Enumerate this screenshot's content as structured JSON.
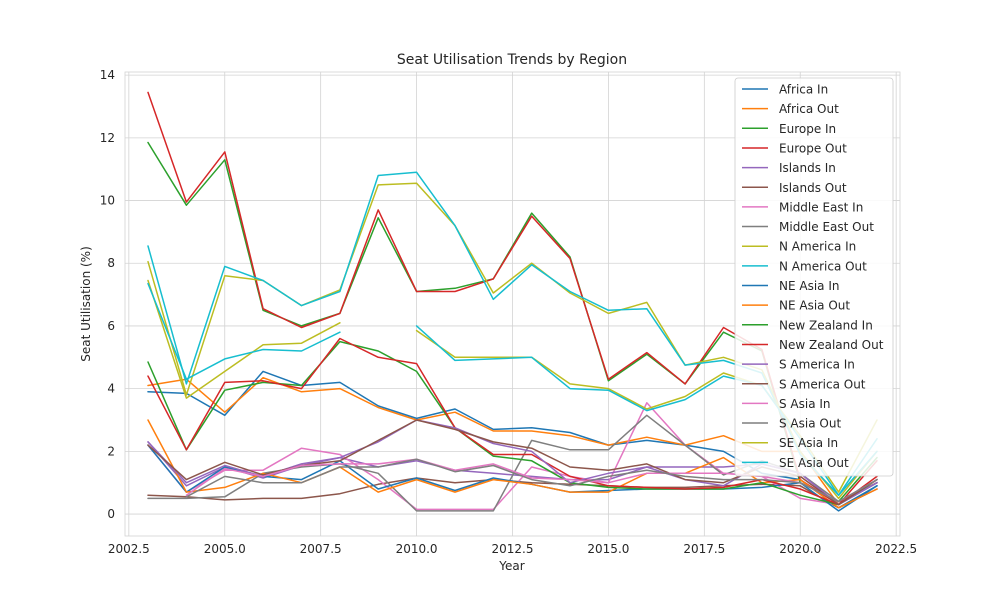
{
  "chart_data": {
    "type": "line",
    "title": "Seat Utilisation Trends by Region",
    "xlabel": "Year",
    "ylabel": "Seat Utilisation (%)",
    "xlim": [
      2002.4,
      2022.6
    ],
    "ylim": [
      -0.7,
      14.1
    ],
    "xticks": [
      2002.5,
      2005.0,
      2007.5,
      2010.0,
      2012.5,
      2015.0,
      2017.5,
      2020.0,
      2022.5
    ],
    "xtick_labels": [
      "2002.5",
      "2005.0",
      "2007.5",
      "2010.0",
      "2012.5",
      "2015.0",
      "2017.5",
      "2020.0",
      "2022.5"
    ],
    "yticks": [
      0,
      2,
      4,
      6,
      8,
      10,
      12,
      14
    ],
    "ytick_labels": [
      "0",
      "2",
      "4",
      "6",
      "8",
      "10",
      "12",
      "14"
    ],
    "grid": true,
    "legend_position": "top-right",
    "x": [
      2003,
      2004,
      2005,
      2006,
      2007,
      2008,
      2009,
      2010,
      2011,
      2012,
      2013,
      2014,
      2015,
      2016,
      2017,
      2018,
      2019,
      2020,
      2021,
      2022
    ],
    "series": [
      {
        "name": "Africa In",
        "color": "#1f77b4",
        "values": [
          3.9,
          3.85,
          3.15,
          4.55,
          4.1,
          4.2,
          3.45,
          3.05,
          3.35,
          2.7,
          2.75,
          2.6,
          2.2,
          2.35,
          2.2,
          2.0,
          1.3,
          1.1,
          0.2,
          0.9
        ]
      },
      {
        "name": "Africa Out",
        "color": "#ff7f0e",
        "values": [
          4.1,
          4.3,
          3.25,
          4.35,
          3.9,
          4.0,
          3.4,
          3.0,
          3.25,
          2.65,
          2.65,
          2.5,
          2.2,
          2.45,
          2.2,
          2.5,
          2.0,
          2.0,
          0.3,
          1.0
        ]
      },
      {
        "name": "Europe In",
        "color": "#2ca02c",
        "values": [
          11.85,
          9.85,
          11.3,
          6.5,
          6.0,
          6.4,
          9.45,
          7.1,
          7.2,
          7.5,
          9.6,
          8.2,
          4.25,
          5.1,
          4.15,
          5.8,
          5.2,
          1.0,
          0.4,
          1.8
        ]
      },
      {
        "name": "Europe Out",
        "color": "#d62728",
        "values": [
          13.45,
          9.95,
          11.55,
          6.55,
          5.95,
          6.4,
          9.7,
          7.1,
          7.1,
          7.5,
          9.5,
          8.15,
          4.3,
          5.15,
          4.15,
          5.95,
          5.25,
          1.1,
          0.3,
          1.7
        ]
      },
      {
        "name": "Islands In",
        "color": "#9467bd",
        "values": [
          2.3,
          0.9,
          1.5,
          1.15,
          1.55,
          1.8,
          1.5,
          1.7,
          1.4,
          1.3,
          1.2,
          1.1,
          1.1,
          1.5,
          1.5,
          1.5,
          1.6,
          1.3,
          0.3,
          1.0
        ]
      },
      {
        "name": "Islands Out",
        "color": "#8c564b",
        "values": [
          0.6,
          0.55,
          0.45,
          0.5,
          0.5,
          0.65,
          0.95,
          1.15,
          1.0,
          1.1,
          1.0,
          0.95,
          0.9,
          0.85,
          0.85,
          0.9,
          0.95,
          0.9,
          0.2,
          0.8
        ]
      },
      {
        "name": "Middle East In",
        "color": "#e377c2",
        "values": [
          2.2,
          0.7,
          1.4,
          1.4,
          2.1,
          1.9,
          1.1,
          0.15,
          0.15,
          0.15,
          1.5,
          1.2,
          1.0,
          3.55,
          2.2,
          1.3,
          1.2,
          0.5,
          0.3,
          1.1
        ]
      },
      {
        "name": "Middle East Out",
        "color": "#7f7f7f",
        "values": [
          0.5,
          0.5,
          0.55,
          1.3,
          1.5,
          1.6,
          1.3,
          0.1,
          0.1,
          0.1,
          2.35,
          2.05,
          2.05,
          3.15,
          2.2,
          1.25,
          1.7,
          1.3,
          0.4,
          1.0
        ]
      },
      {
        "name": "N America In",
        "color": "#bcbd22",
        "values": [
          8.05,
          3.8,
          7.6,
          7.45,
          6.65,
          7.15,
          10.5,
          10.55,
          9.2,
          7.05,
          8.0,
          7.05,
          6.4,
          6.75,
          4.75,
          5.0,
          4.6,
          2.0,
          0.5,
          2.0
        ]
      },
      {
        "name": "N America Out",
        "color": "#17becf",
        "values": [
          8.55,
          4.15,
          7.9,
          7.45,
          6.65,
          7.1,
          10.8,
          10.9,
          9.2,
          6.85,
          7.95,
          7.1,
          6.5,
          6.55,
          4.75,
          4.9,
          4.5,
          1.9,
          0.6,
          2.0
        ]
      },
      {
        "name": "NE Asia In",
        "color": "#1f77b4",
        "values": [
          2.2,
          0.7,
          1.5,
          1.2,
          1.1,
          1.7,
          0.8,
          1.15,
          0.75,
          1.15,
          0.95,
          0.7,
          0.75,
          0.8,
          0.8,
          0.8,
          0.85,
          1.0,
          0.1,
          0.9
        ]
      },
      {
        "name": "NE Asia Out",
        "color": "#ff7f0e",
        "values": [
          3.0,
          0.7,
          0.85,
          1.3,
          1.0,
          1.5,
          0.7,
          1.1,
          0.7,
          1.1,
          0.95,
          0.7,
          0.7,
          1.3,
          1.3,
          1.8,
          1.0,
          1.1,
          0.2,
          0.8
        ]
      },
      {
        "name": "New Zealand In",
        "color": "#2ca02c",
        "values": [
          4.85,
          2.05,
          3.95,
          4.2,
          4.1,
          5.5,
          5.2,
          4.55,
          2.75,
          1.85,
          1.7,
          1.0,
          0.85,
          0.8,
          0.8,
          0.8,
          1.0,
          0.6,
          0.3,
          1.1
        ]
      },
      {
        "name": "New Zealand Out",
        "color": "#d62728",
        "values": [
          4.4,
          2.05,
          4.2,
          4.25,
          4.0,
          5.6,
          5.0,
          4.8,
          2.75,
          1.9,
          1.9,
          1.2,
          0.9,
          0.85,
          0.8,
          0.85,
          1.1,
          0.8,
          0.3,
          1.2
        ]
      },
      {
        "name": "S America In",
        "color": "#9467bd",
        "values": [
          2.3,
          1.0,
          1.55,
          1.2,
          1.6,
          1.8,
          2.3,
          3.0,
          2.75,
          2.25,
          2.0,
          1.0,
          1.3,
          1.5,
          1.1,
          0.9,
          1.6,
          1.3,
          0.3,
          1.0
        ]
      },
      {
        "name": "S America Out",
        "color": "#8c564b",
        "values": [
          2.2,
          1.1,
          1.65,
          1.25,
          1.55,
          1.7,
          2.35,
          3.0,
          2.7,
          2.3,
          2.1,
          1.5,
          1.4,
          1.6,
          1.1,
          1.0,
          1.5,
          1.2,
          0.3,
          1.1
        ]
      },
      {
        "name": "S Asia In",
        "color": "#e377c2",
        "values": [
          null,
          0.6,
          1.45,
          1.2,
          1.55,
          1.6,
          1.6,
          1.75,
          1.4,
          1.6,
          1.15,
          1.1,
          1.0,
          1.3,
          1.3,
          1.3,
          1.2,
          1.0,
          0.4,
          1.1
        ]
      },
      {
        "name": "S Asia Out",
        "color": "#7f7f7f",
        "values": [
          null,
          0.55,
          1.2,
          1.0,
          1.0,
          1.5,
          1.5,
          1.75,
          1.35,
          1.55,
          1.1,
          0.9,
          1.2,
          1.4,
          1.2,
          1.1,
          1.1,
          1.0,
          0.4,
          1.1
        ]
      },
      {
        "name": "SE Asia In",
        "color": "#bcbd22",
        "values": [
          7.45,
          3.7,
          4.55,
          5.4,
          5.45,
          6.1,
          null,
          5.85,
          5.0,
          5.0,
          5.0,
          4.15,
          4.0,
          3.35,
          3.75,
          4.5,
          4.1,
          2.5,
          0.7,
          3.0
        ]
      },
      {
        "name": "SE Asia Out",
        "color": "#17becf",
        "values": [
          7.35,
          4.3,
          4.95,
          5.25,
          5.2,
          5.8,
          null,
          6.0,
          4.9,
          4.95,
          5.0,
          4.0,
          3.95,
          3.3,
          3.65,
          4.4,
          4.1,
          2.4,
          0.6,
          2.4
        ]
      }
    ]
  }
}
